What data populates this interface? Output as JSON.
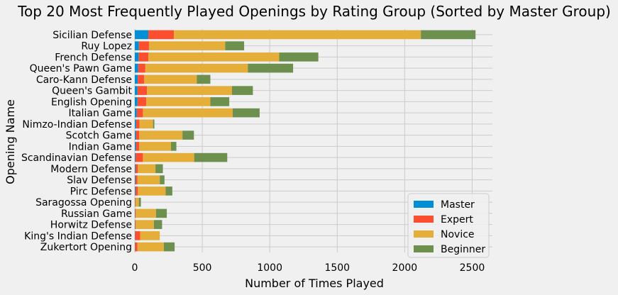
{
  "chart_data": {
    "type": "bar",
    "orientation": "horizontal",
    "stacked": true,
    "title": "Top 20 Most Frequently Played Openings by Rating Group (Sorted by Master Group)",
    "xlabel": "Number of Times Played",
    "ylabel": "Opening Name",
    "xlim": [
      0,
      2650
    ],
    "xticks": [
      0,
      500,
      1000,
      1500,
      2000,
      2500
    ],
    "grid": true,
    "legend_position": "bottom-right",
    "categories": [
      "Sicilian Defense",
      "Ruy Lopez",
      "French Defense",
      "Queen's Pawn Game",
      "Caro-Kann Defense",
      "Queen's Gambit",
      "English Opening",
      "Italian Game",
      "Nimzo-Indian Defense",
      "Scotch Game",
      "Indian Game",
      "Scandinavian Defense",
      "Modern Defense",
      "Slav Defense",
      "Pirc Defense",
      "Saragossa Opening",
      "Russian Game",
      "Horwitz Defense",
      "King's Indian Defense",
      "Zukertort Opening"
    ],
    "series": [
      {
        "name": "Master",
        "color": "#008fd5",
        "values": [
          100,
          30,
          28,
          25,
          22,
          20,
          20,
          15,
          10,
          8,
          8,
          5,
          5,
          5,
          5,
          2,
          2,
          2,
          2,
          2
        ]
      },
      {
        "name": "Expert",
        "color": "#fc4f30",
        "values": [
          190,
          75,
          72,
          53,
          48,
          70,
          65,
          45,
          25,
          25,
          25,
          55,
          18,
          15,
          18,
          3,
          5,
          5,
          38,
          18
        ]
      },
      {
        "name": "Novice",
        "color": "#e5ae38",
        "values": [
          1830,
          565,
          970,
          760,
          390,
          630,
          475,
          665,
          100,
          320,
          235,
          380,
          130,
          165,
          205,
          25,
          150,
          135,
          145,
          195
        ]
      },
      {
        "name": "Beginner",
        "color": "#6d904f",
        "values": [
          405,
          140,
          290,
          335,
          100,
          155,
          140,
          200,
          10,
          85,
          40,
          245,
          55,
          35,
          50,
          15,
          80,
          60,
          0,
          80
        ]
      }
    ]
  }
}
